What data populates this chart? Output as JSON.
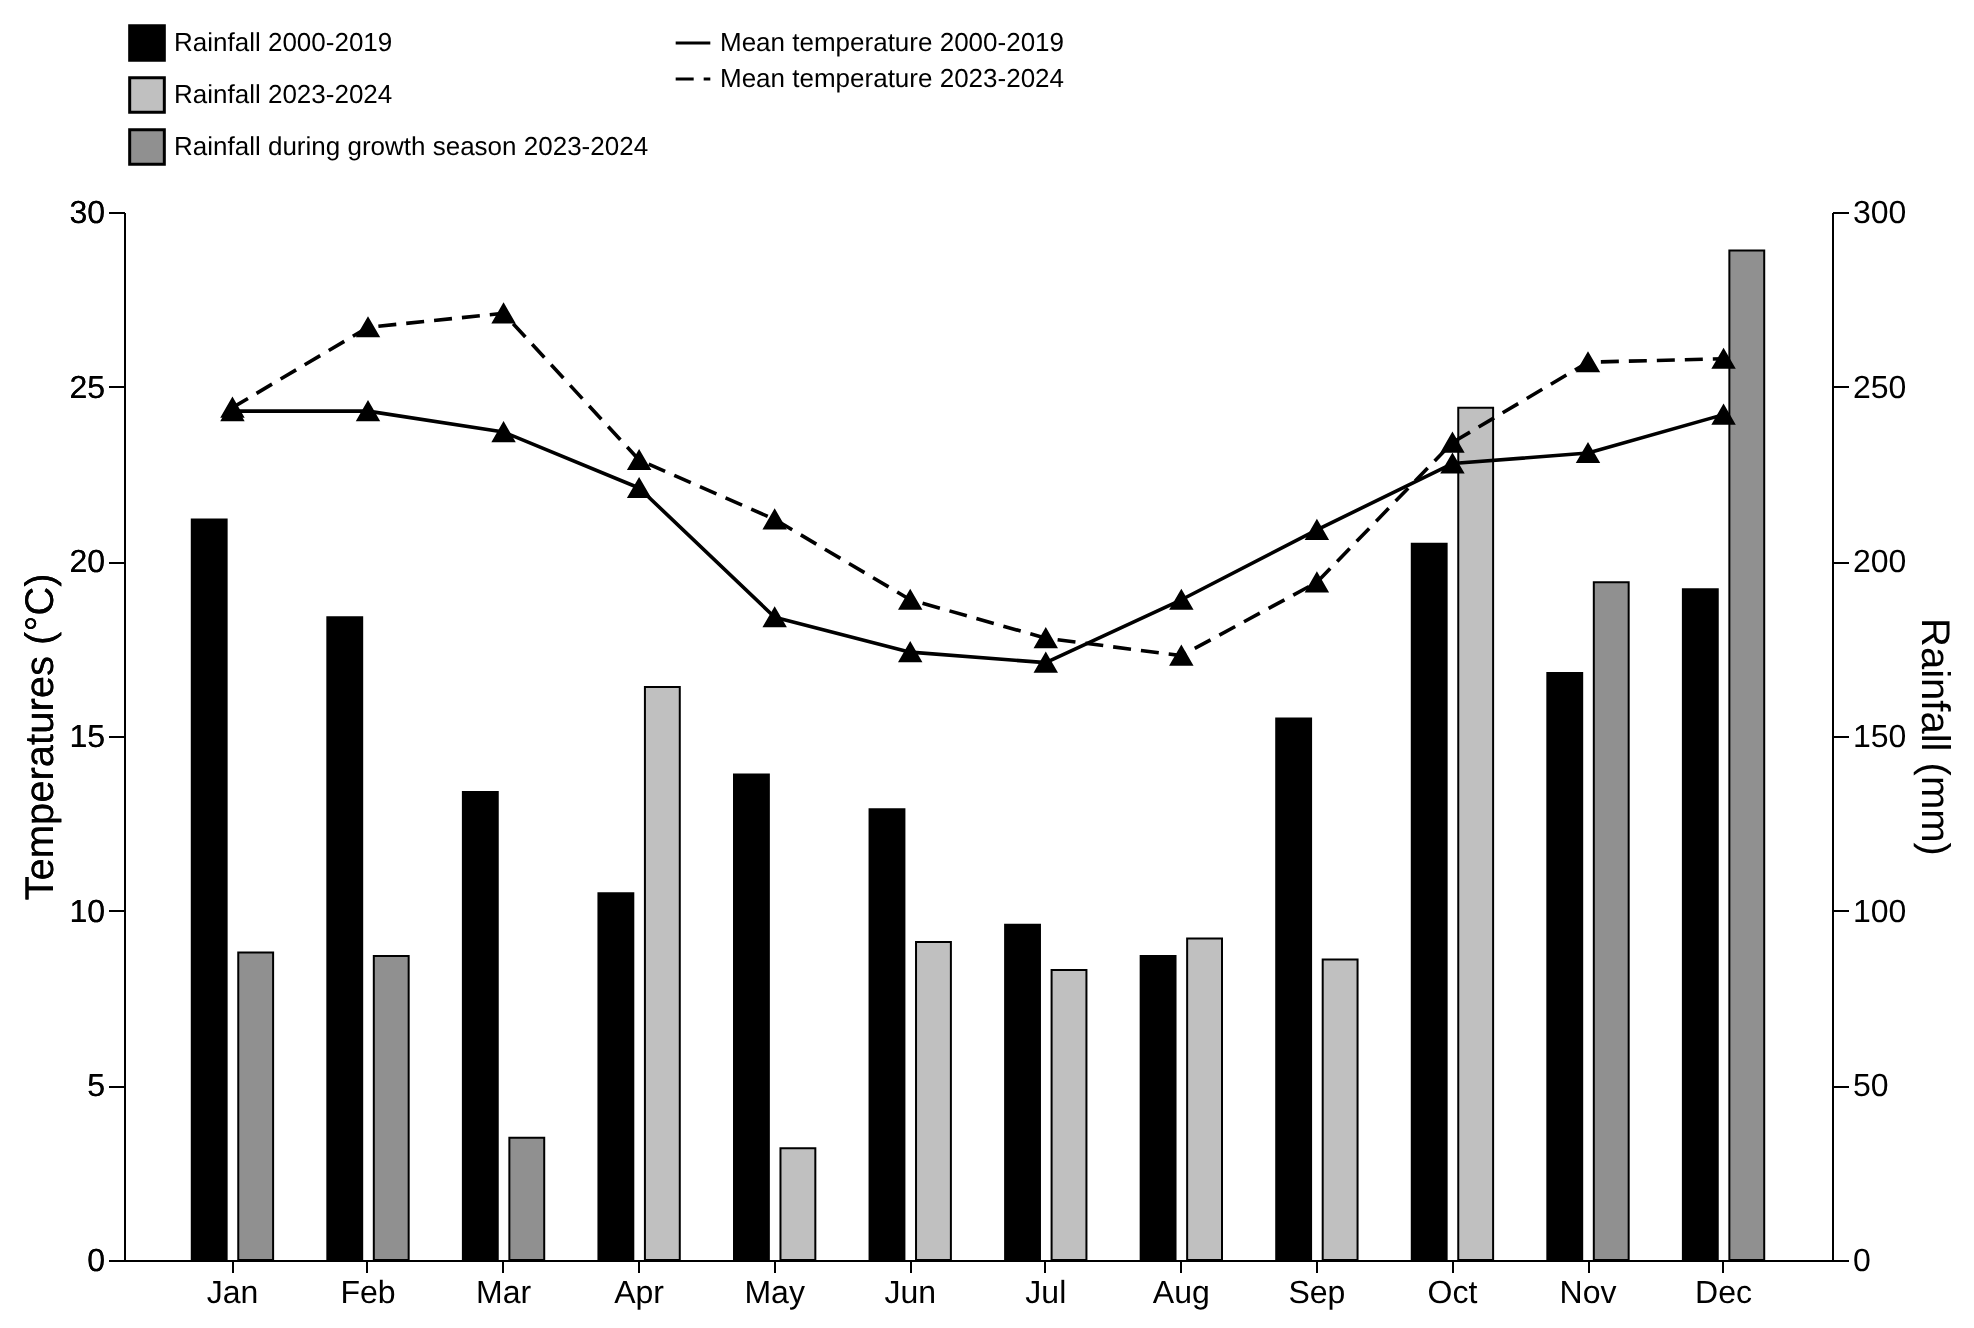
{
  "chart_data": {
    "type": "bar",
    "xlabel": null,
    "ylabel": "Temperatures (°C)",
    "y2label": "Rainfall (mm)",
    "categories": [
      "Jan",
      "Feb",
      "Mar",
      "Apr",
      "May",
      "Jun",
      "Jul",
      "Aug",
      "Sep",
      "Oct",
      "Nov",
      "Dec"
    ],
    "series": [
      {
        "name": "Rainfall 2000-2019",
        "axis": "y2",
        "color": "#000000",
        "values": [
          212,
          184,
          134,
          105,
          139,
          129,
          96,
          87,
          155,
          205,
          168,
          192
        ]
      },
      {
        "name": "Rainfall 2023-2024",
        "axis": "y2",
        "color": "#c0c0c0",
        "values": [
          null,
          null,
          null,
          164,
          32,
          91,
          83,
          92,
          86,
          244,
          null,
          null
        ]
      },
      {
        "name": "Rainfall during growth season 2023-2024",
        "axis": "y2",
        "color": "#909090",
        "values": [
          88,
          87,
          35,
          null,
          null,
          null,
          null,
          null,
          null,
          null,
          194,
          289
        ]
      },
      {
        "name": "Mean  temperature 2000-2019",
        "type": "line",
        "color": "#000000",
        "marker": "triangle",
        "line_style": "solid",
        "values": [
          24.3,
          24.3,
          23.7,
          22.1,
          18.4,
          17.4,
          17.1,
          18.9,
          20.9,
          22.8,
          23.1,
          24.2
        ]
      },
      {
        "name": "Mean temperature 2023-2024",
        "type": "line",
        "color": "#000000",
        "marker": "triangle",
        "line_style": "dashed",
        "values": [
          24.4,
          26.7,
          27.1,
          22.9,
          21.2,
          18.9,
          17.8,
          17.3,
          19.4,
          23.4,
          25.7,
          25.8
        ]
      }
    ],
    "ylim": [
      0,
      30
    ],
    "yticks": [
      0,
      5,
      10,
      15,
      20,
      25,
      30
    ],
    "y2lim": [
      0,
      300
    ],
    "y2ticks": [
      0,
      50,
      100,
      150,
      200,
      250,
      300
    ],
    "grid": false,
    "legend": "top"
  }
}
